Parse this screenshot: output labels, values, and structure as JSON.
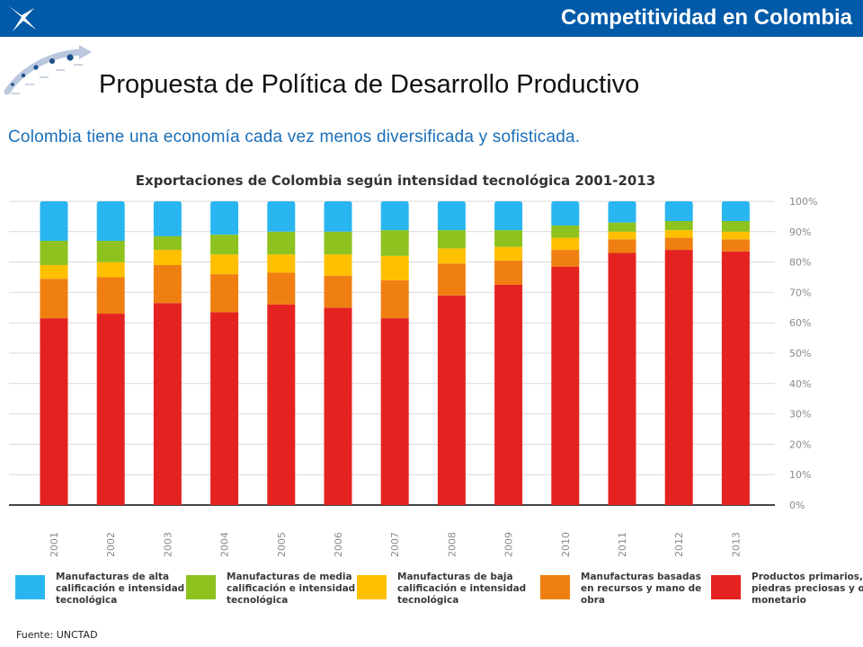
{
  "header": {
    "section_title": "Competitividad en Colombia",
    "bar_color": "#005aa8"
  },
  "logo_icon": "x-star-logo",
  "decoration_icon": "curved-arrow-timeline-icon",
  "page_title": "Propuesta de Política de Desarrollo Productivo",
  "subtitle": "Colombia tiene una economía cada vez menos diversificada y sofisticada.",
  "chart_data": {
    "type": "bar",
    "stacked": true,
    "title": "Exportaciones de Colombia según intensidad tecnológica 2001-2013",
    "categories": [
      "2001",
      "2002",
      "2003",
      "2004",
      "2005",
      "2006",
      "2007",
      "2008",
      "2009",
      "2010",
      "2011",
      "2012",
      "2013"
    ],
    "ylim": [
      0,
      100
    ],
    "yticks": [
      "0%",
      "10%",
      "20%",
      "30%",
      "40%",
      "50%",
      "60%",
      "70%",
      "80%",
      "90%",
      "100%"
    ],
    "grid": true,
    "legend_position": "bottom",
    "series": [
      {
        "name": "Productos primarios, piedras preciosas y oro monetario",
        "color": "#e42320",
        "values": [
          61.5,
          63,
          66.5,
          63.5,
          66,
          65,
          61.5,
          69,
          72.5,
          78.5,
          83,
          84,
          83.5
        ]
      },
      {
        "name": "Manufacturas basadas en recursos y mano de obra",
        "color": "#f07f12",
        "values": [
          13,
          12,
          12.5,
          12.5,
          10.5,
          10.5,
          12.5,
          10.5,
          8,
          5.5,
          4.5,
          4,
          4
        ]
      },
      {
        "name": "Manufacturas de baja calificación e intensidad tecnológica",
        "color": "#ffc000",
        "values": [
          4.5,
          5,
          5,
          6.5,
          6,
          7,
          8,
          5,
          4.5,
          4,
          2.5,
          2.5,
          2.5
        ]
      },
      {
        "name": "Manufacturas de media calificación e intensidad tecnológica",
        "color": "#8dc21f",
        "values": [
          8,
          7,
          4.5,
          6.5,
          7.5,
          7.5,
          8.5,
          6,
          5.5,
          4,
          3,
          3,
          3.5
        ]
      },
      {
        "name": "Manufacturas de alta calificación e intensidad tecnológica",
        "color": "#29b6f0",
        "values": [
          13,
          13,
          11.5,
          11,
          10,
          10,
          9.5,
          9.5,
          9.5,
          8,
          7,
          6.5,
          6.5
        ]
      }
    ]
  },
  "legend": [
    {
      "label": "Manufacturas de alta calificación e intensidad tecnológica",
      "color": "#29b6f0"
    },
    {
      "label": "Manufacturas de media calificación e intensidad tecnológica",
      "color": "#8dc21f"
    },
    {
      "label": "Manufacturas de baja calificación e intensidad tecnológica",
      "color": "#ffc000"
    },
    {
      "label": "Manufacturas basadas en recursos y mano de obra",
      "color": "#f07f12"
    },
    {
      "label": "Productos primarios, piedras preciosas y oro monetario",
      "color": "#e42320"
    }
  ],
  "source": "Fuente: UNCTAD"
}
